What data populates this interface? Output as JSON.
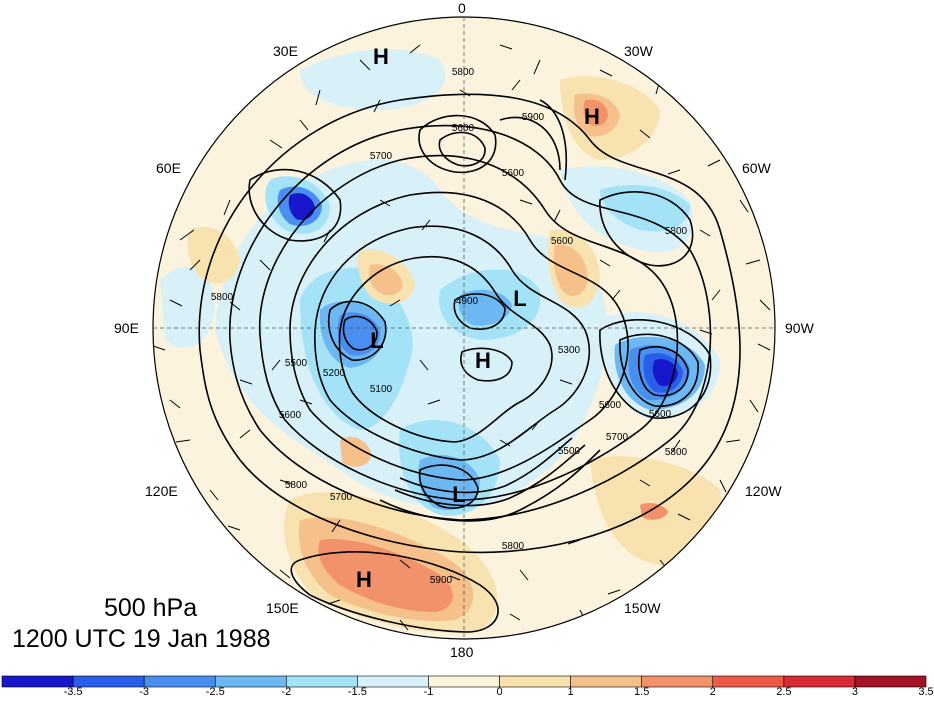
{
  "caption": {
    "level": "500 hPa",
    "time": "1200 UTC 19 Jan 1988"
  },
  "longitude_labels": {
    "top": "0",
    "top_left": "30E",
    "top_right": "30W",
    "upper_left": "60E",
    "upper_right": "60W",
    "left": "90E",
    "right": "90W",
    "lower_left": "120E",
    "lower_right": "120W",
    "bottom_left": "150E",
    "bottom_right": "150W",
    "bottom": "180"
  },
  "pressure_centers": [
    "H",
    "H",
    "L",
    "L",
    "H",
    "L",
    "H"
  ],
  "contour_labels": [
    "5800",
    "5600",
    "5700",
    "5900",
    "5800",
    "5600",
    "5800",
    "5600",
    "5500",
    "5200",
    "5100",
    "4900",
    "5300",
    "5600",
    "5700",
    "5800",
    "5800",
    "5900",
    "5800",
    "5600",
    "5700",
    "5500",
    "5600"
  ],
  "colorbar": {
    "ticks": [
      "-3.5",
      "-3",
      "-2.5",
      "-2",
      "-1.5",
      "-1",
      "0",
      "1",
      "1.5",
      "2",
      "2.5",
      "3",
      "3.5"
    ],
    "colors": [
      "#1717cc",
      "#2a5ee8",
      "#4a8ef0",
      "#6db8f2",
      "#a3e2f7",
      "#d8f1f8",
      "#fdf6dc",
      "#f8e2b0",
      "#f6c08a",
      "#f2926a",
      "#ec5a4a",
      "#d82a34",
      "#a31224"
    ]
  }
}
